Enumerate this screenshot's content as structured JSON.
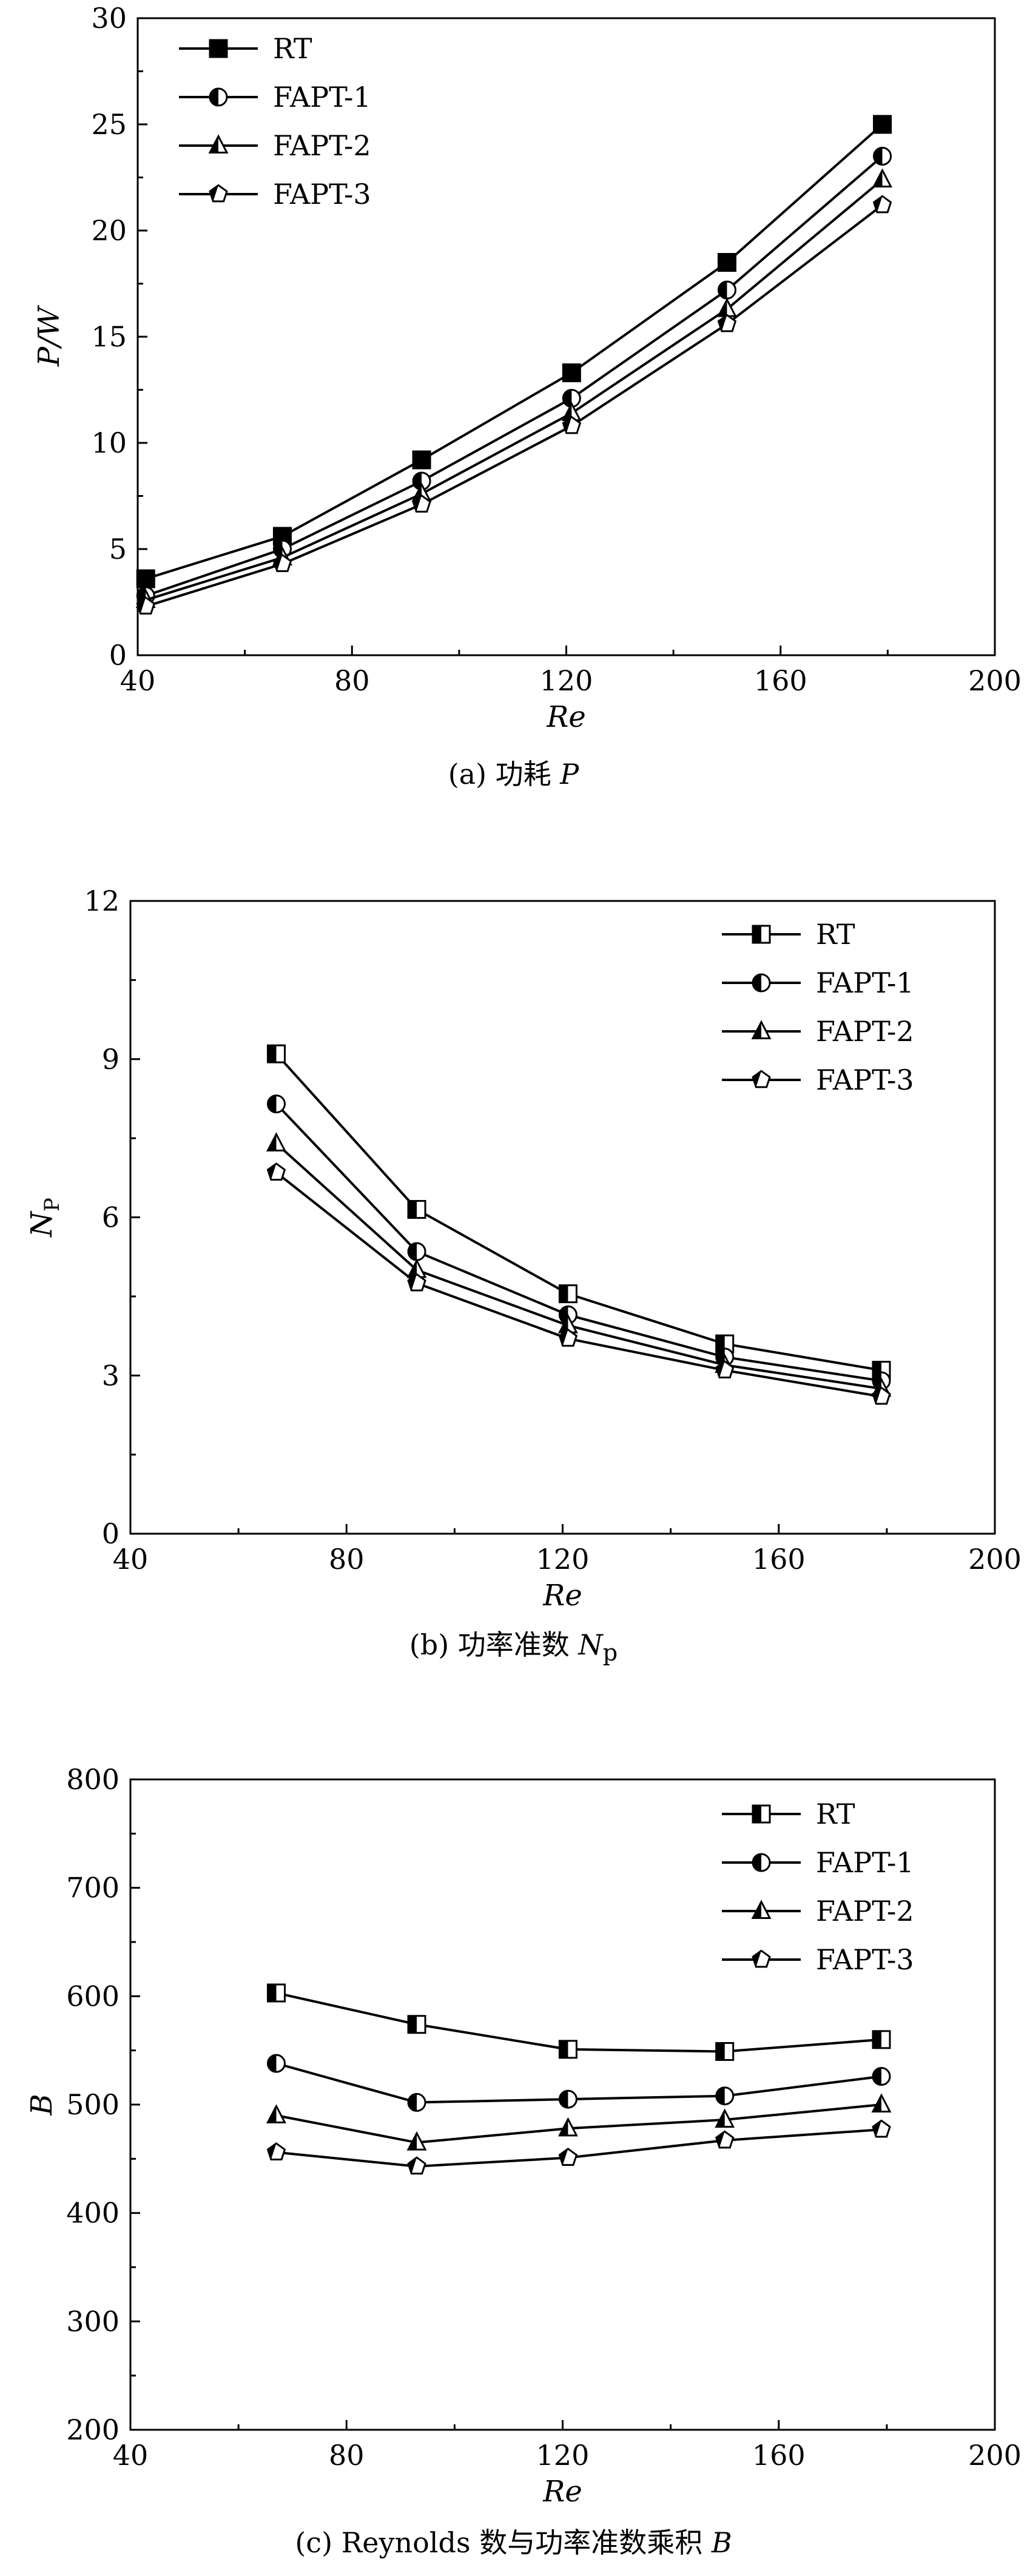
{
  "chart_data": [
    {
      "type": "line",
      "caption": {
        "prefix": "(a) 功耗 ",
        "symbol": "P"
      },
      "ylabel": "P/W",
      "xlabel": "Re",
      "xlim": [
        40,
        200
      ],
      "ylim": [
        0,
        30
      ],
      "xticks": [
        "40",
        "80",
        "120",
        "160",
        "200"
      ],
      "yticks": [
        "0",
        "5",
        "10",
        "15",
        "20",
        "25",
        "30"
      ],
      "legend_position": "top-left",
      "x": [
        41.5,
        67,
        93,
        121,
        150,
        179
      ],
      "series": [
        {
          "name": "RT",
          "marker": "square-filled",
          "values": [
            3.6,
            5.6,
            9.2,
            13.3,
            18.5,
            25.0
          ]
        },
        {
          "name": "FAPT-1",
          "marker": "circle-half",
          "values": [
            2.8,
            5.0,
            8.2,
            12.1,
            17.2,
            23.5
          ]
        },
        {
          "name": "FAPT-2",
          "marker": "triangle-half",
          "values": [
            2.6,
            4.6,
            7.6,
            11.4,
            16.3,
            22.4
          ]
        },
        {
          "name": "FAPT-3",
          "marker": "pentagon-half",
          "values": [
            2.3,
            4.3,
            7.1,
            10.8,
            15.6,
            21.2
          ]
        }
      ]
    },
    {
      "type": "line",
      "caption": {
        "prefix": "(b) 功率准数 ",
        "symbol": "N",
        "sub": "p"
      },
      "ylabel": "N",
      "ylabel_sub": "P",
      "xlabel": "Re",
      "xlim": [
        40,
        200
      ],
      "ylim": [
        0,
        12
      ],
      "xticks": [
        "40",
        "80",
        "120",
        "160",
        "200"
      ],
      "yticks": [
        "0",
        "3",
        "6",
        "9",
        "12"
      ],
      "legend_position": "top-right",
      "x": [
        67,
        93,
        121,
        150,
        179
      ],
      "series": [
        {
          "name": "RT",
          "marker": "square-half",
          "values": [
            9.1,
            6.15,
            4.55,
            3.6,
            3.1
          ]
        },
        {
          "name": "FAPT-1",
          "marker": "circle-half",
          "values": [
            8.15,
            5.35,
            4.15,
            3.35,
            2.9
          ]
        },
        {
          "name": "FAPT-2",
          "marker": "triangle-half",
          "values": [
            7.4,
            5.0,
            3.95,
            3.2,
            2.75
          ]
        },
        {
          "name": "FAPT-3",
          "marker": "pentagon-half",
          "values": [
            6.85,
            4.75,
            3.7,
            3.1,
            2.6
          ]
        }
      ]
    },
    {
      "type": "line",
      "caption": {
        "prefix": "(c) Reynolds 数与功率准数乘积 ",
        "symbol": "B"
      },
      "ylabel": "B",
      "xlabel": "Re",
      "xlim": [
        40,
        200
      ],
      "ylim": [
        200,
        800
      ],
      "xticks": [
        "40",
        "80",
        "120",
        "160",
        "200"
      ],
      "yticks": [
        "200",
        "300",
        "400",
        "500",
        "600",
        "700",
        "800"
      ],
      "legend_position": "top-right",
      "x": [
        67,
        93,
        121,
        150,
        179
      ],
      "series": [
        {
          "name": "RT",
          "marker": "square-half",
          "values": [
            603,
            574,
            551,
            549,
            560
          ]
        },
        {
          "name": "FAPT-1",
          "marker": "circle-half",
          "values": [
            538,
            502,
            505,
            508,
            526
          ]
        },
        {
          "name": "FAPT-2",
          "marker": "triangle-half",
          "values": [
            490,
            465,
            478,
            486,
            500
          ]
        },
        {
          "name": "FAPT-3",
          "marker": "pentagon-half",
          "values": [
            456,
            443,
            451,
            467,
            477
          ]
        }
      ]
    }
  ]
}
